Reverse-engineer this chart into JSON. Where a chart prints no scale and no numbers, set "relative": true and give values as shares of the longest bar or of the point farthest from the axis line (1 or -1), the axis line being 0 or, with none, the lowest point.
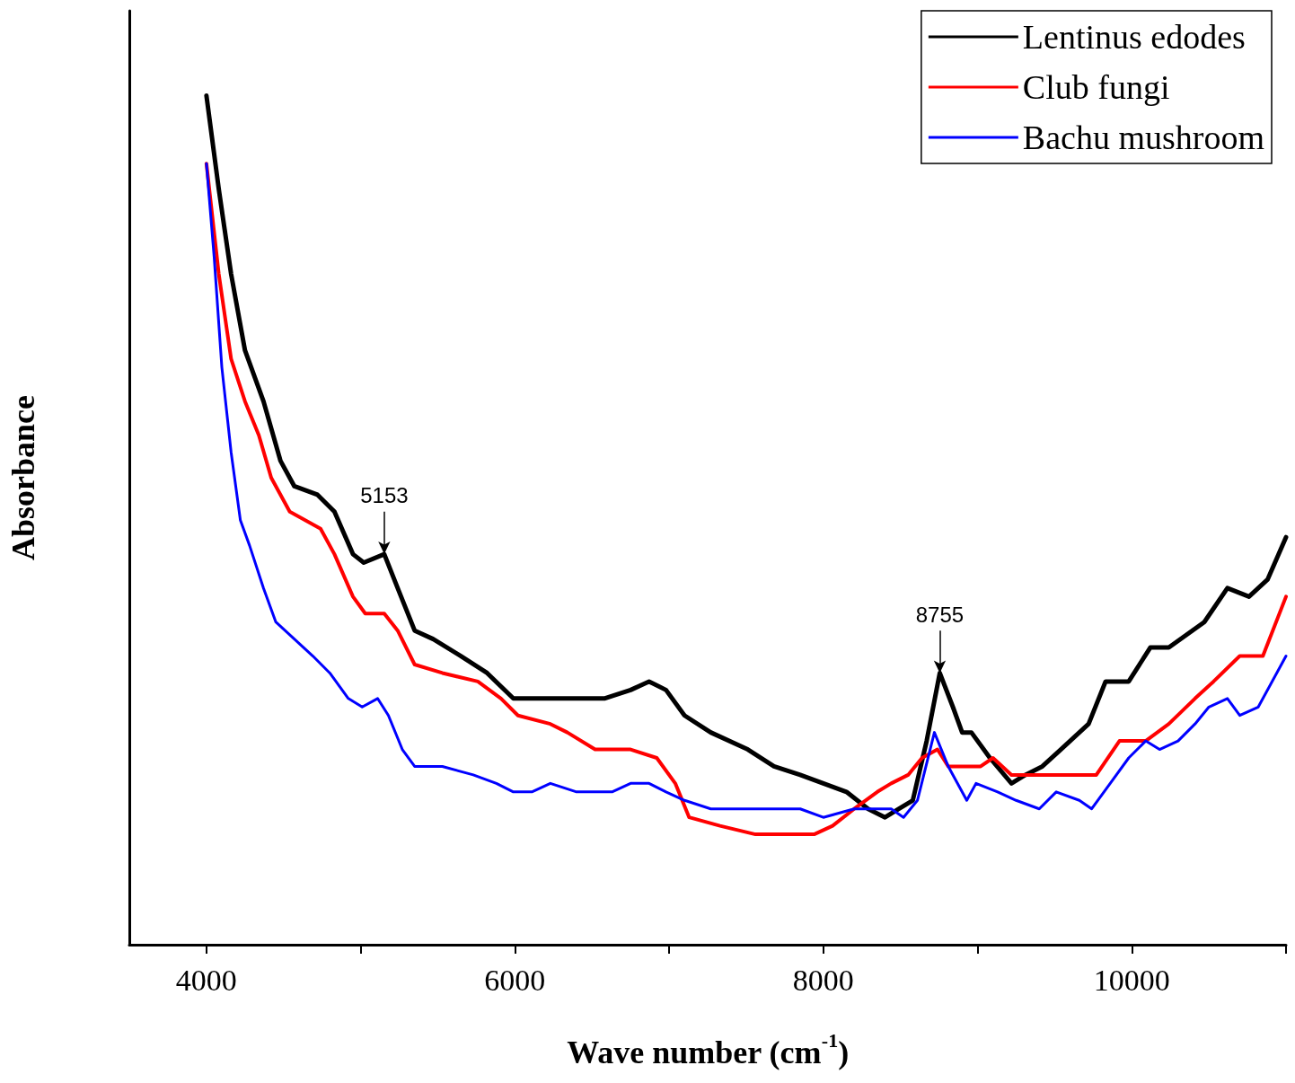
{
  "chart_data": {
    "type": "line",
    "relative": true,
    "xlabel": "Wave number (cm$^{-1}$)",
    "ylabel": "Absorbance",
    "xlim": [
      3500,
      11000
    ],
    "xticks": [
      4000,
      {
        "value": 5000,
        "label": null
      },
      6000,
      {
        "value": 7000,
        "label": null
      },
      8000,
      {
        "value": 9000,
        "label": null
      },
      10000,
      {
        "value": 11000,
        "label": null
      }
    ],
    "legend": "top right",
    "grid": false,
    "marker": "none",
    "line_style": "solid",
    "annotations": [
      {
        "text": "5153",
        "x": 5153,
        "y": 0.46
      },
      {
        "text": "8755",
        "x": 8755,
        "y": 0.32
      }
    ],
    "series": [
      {
        "name": "Lentinus edodes",
        "color": "#000000",
        "x": [
          4000,
          4080,
          4160,
          4250,
          4370,
          4480,
          4570,
          4720,
          4830,
          4950,
          5020,
          5153,
          5240,
          5350,
          5470,
          5650,
          5820,
          5990,
          6110,
          6340,
          6580,
          6750,
          6870,
          6980,
          7100,
          7270,
          7510,
          7680,
          7850,
          8000,
          8150,
          8290,
          8400,
          8490,
          8580,
          8670,
          8755,
          8840,
          8900,
          8960,
          9080,
          9220,
          9310,
          9420,
          9540,
          9720,
          9830,
          9980,
          10120,
          10240,
          10470,
          10620,
          10760,
          10880,
          11000
        ],
        "values": [
          1.0,
          0.89,
          0.79,
          0.7,
          0.64,
          0.57,
          0.54,
          0.53,
          0.51,
          0.46,
          0.45,
          0.46,
          0.42,
          0.37,
          0.36,
          0.34,
          0.32,
          0.29,
          0.29,
          0.29,
          0.29,
          0.3,
          0.31,
          0.3,
          0.27,
          0.25,
          0.23,
          0.21,
          0.2,
          0.19,
          0.18,
          0.16,
          0.15,
          0.16,
          0.17,
          0.24,
          0.32,
          0.28,
          0.25,
          0.25,
          0.22,
          0.19,
          0.2,
          0.21,
          0.23,
          0.26,
          0.31,
          0.31,
          0.35,
          0.35,
          0.38,
          0.42,
          0.41,
          0.43,
          0.48
        ]
      },
      {
        "name": "Club fungi",
        "color": "#ff0000",
        "x": [
          4000,
          4080,
          4160,
          4250,
          4340,
          4420,
          4540,
          4740,
          4830,
          4950,
          5030,
          5153,
          5240,
          5350,
          5530,
          5760,
          5910,
          6020,
          6230,
          6340,
          6520,
          6750,
          6920,
          7040,
          7130,
          7330,
          7560,
          7800,
          7940,
          8060,
          8200,
          8350,
          8440,
          8550,
          8640,
          8740,
          8810,
          8900,
          9020,
          9100,
          9220,
          9370,
          9540,
          9690,
          9770,
          9920,
          10090,
          10240,
          10410,
          10530,
          10700,
          10850,
          11000
        ],
        "values": [
          0.92,
          0.79,
          0.69,
          0.64,
          0.6,
          0.55,
          0.51,
          0.49,
          0.46,
          0.41,
          0.39,
          0.39,
          0.37,
          0.33,
          0.32,
          0.31,
          0.29,
          0.27,
          0.26,
          0.25,
          0.23,
          0.23,
          0.22,
          0.19,
          0.15,
          0.14,
          0.13,
          0.13,
          0.13,
          0.14,
          0.16,
          0.18,
          0.19,
          0.2,
          0.22,
          0.23,
          0.21,
          0.21,
          0.21,
          0.22,
          0.2,
          0.2,
          0.2,
          0.2,
          0.2,
          0.24,
          0.24,
          0.26,
          0.29,
          0.31,
          0.34,
          0.34,
          0.41
        ]
      },
      {
        "name": "Bachu mushroom",
        "color": "#0000ff",
        "x": [
          4000,
          4050,
          4100,
          4160,
          4220,
          4280,
          4370,
          4450,
          4570,
          4690,
          4800,
          4920,
          5010,
          5110,
          5180,
          5270,
          5350,
          5530,
          5730,
          5880,
          5990,
          6110,
          6230,
          6400,
          6630,
          6750,
          6870,
          6980,
          7100,
          7270,
          7450,
          7680,
          7850,
          8000,
          8200,
          8440,
          8520,
          8610,
          8720,
          8810,
          8930,
          8990,
          9130,
          9250,
          9400,
          9510,
          9660,
          9740,
          9860,
          9980,
          10090,
          10180,
          10300,
          10410,
          10500,
          10620,
          10700,
          10820,
          11000
        ],
        "values": [
          0.92,
          0.81,
          0.68,
          0.58,
          0.5,
          0.47,
          0.42,
          0.38,
          0.36,
          0.34,
          0.32,
          0.29,
          0.28,
          0.29,
          0.27,
          0.23,
          0.21,
          0.21,
          0.2,
          0.19,
          0.18,
          0.18,
          0.19,
          0.18,
          0.18,
          0.19,
          0.19,
          0.18,
          0.17,
          0.16,
          0.16,
          0.16,
          0.16,
          0.15,
          0.16,
          0.16,
          0.15,
          0.17,
          0.25,
          0.21,
          0.17,
          0.19,
          0.18,
          0.17,
          0.16,
          0.18,
          0.17,
          0.16,
          0.19,
          0.22,
          0.24,
          0.23,
          0.24,
          0.26,
          0.28,
          0.29,
          0.27,
          0.28,
          0.34
        ]
      }
    ]
  }
}
